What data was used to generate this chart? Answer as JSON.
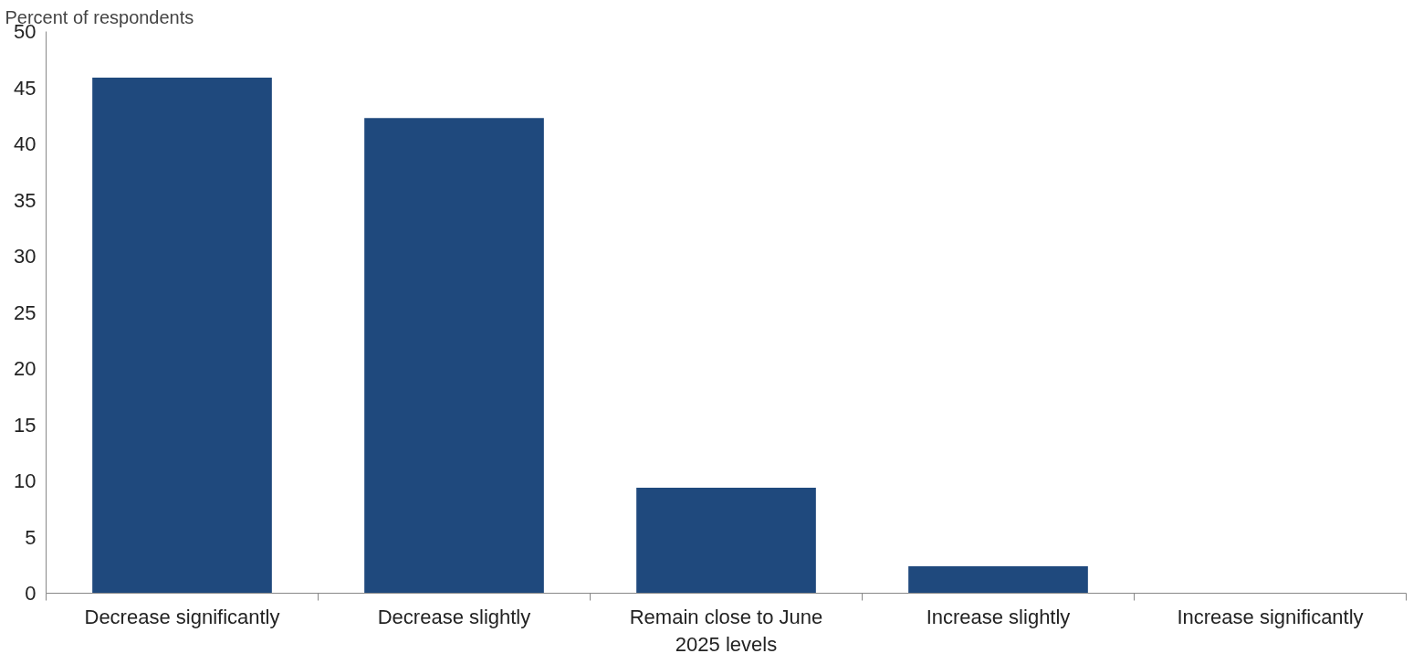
{
  "chart_data": {
    "type": "bar",
    "ylabel": "Percent of respondents",
    "categories": [
      "Decrease significantly",
      "Decrease slightly",
      "Remain close to June 2025 levels",
      "Increase slightly",
      "Increase significantly"
    ],
    "values": [
      45.9,
      42.3,
      9.4,
      2.4,
      0
    ],
    "color": "#1f497d",
    "ylim": [
      0,
      50
    ],
    "yticks": [
      0,
      5,
      10,
      15,
      20,
      25,
      30,
      35,
      40,
      45,
      50
    ],
    "grid": false
  }
}
